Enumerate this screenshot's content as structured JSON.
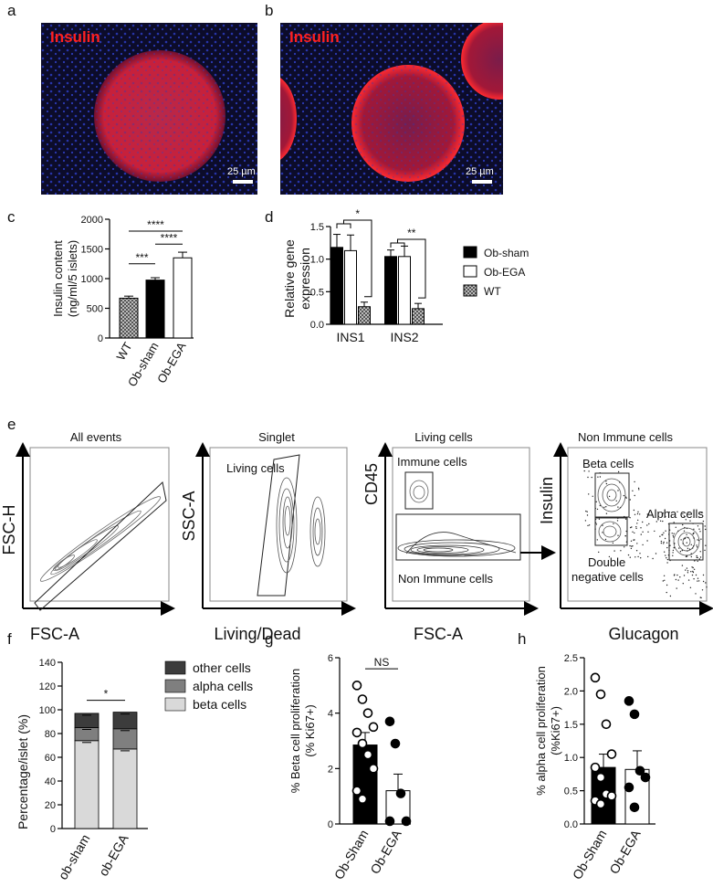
{
  "panels": {
    "a": {
      "letter": "a",
      "stain": "Insulin",
      "scale": "25 µm"
    },
    "b": {
      "letter": "b",
      "stain": "Insulin",
      "scale": "25 µm"
    },
    "c": {
      "letter": "c"
    },
    "d": {
      "letter": "d"
    },
    "e": {
      "letter": "e"
    },
    "f": {
      "letter": "f"
    },
    "g": {
      "letter": "g"
    },
    "h": {
      "letter": "h"
    }
  },
  "flow": {
    "plots": [
      {
        "title": "All events",
        "xlabel": "FSC-A",
        "ylabel": "FSC-H"
      },
      {
        "title": "Singlet",
        "xlabel": "Living/Dead",
        "ylabel": "SSC-A",
        "gate": "Living cells"
      },
      {
        "title": "Living cells",
        "xlabel": "FSC-A",
        "ylabel": "CD45",
        "gate_top": "Immune cells",
        "gate_bottom": "Non Immune cells"
      },
      {
        "title": "Non Immune cells",
        "xlabel": "Glucagon",
        "ylabel": "Insulin",
        "gate_beta": "Beta cells",
        "gate_alpha": "Alpha cells",
        "gate_dn1": "Double",
        "gate_dn2": "negative cells"
      }
    ]
  },
  "chart_data": [
    {
      "panel": "c",
      "type": "bar",
      "categories": [
        "WT",
        "Ob-sham",
        "Ob-EGA"
      ],
      "values": [
        670,
        975,
        1350
      ],
      "errors": [
        35,
        40,
        95
      ],
      "ylabel": [
        "Insulin content",
        "(ng/ml/5 islets)"
      ],
      "ylim": [
        0,
        2000
      ],
      "yticks": [
        0,
        500,
        1000,
        1500,
        2000
      ],
      "significance": [
        "***",
        "****",
        "****"
      ],
      "colors": {
        "WT": "#9a9a9a",
        "Ob-sham": "#000000",
        "Ob-EGA": "#ffffff"
      }
    },
    {
      "panel": "d",
      "type": "bar",
      "categories": [
        "INS1",
        "INS2"
      ],
      "series": [
        {
          "name": "Ob-sham",
          "values": [
            1.18,
            1.04
          ],
          "errors": [
            0.2,
            0.1
          ]
        },
        {
          "name": "Ob-EGA",
          "values": [
            1.13,
            1.04
          ],
          "errors": [
            0.24,
            0.16
          ]
        },
        {
          "name": "WT",
          "values": [
            0.27,
            0.24
          ],
          "errors": [
            0.07,
            0.08
          ]
        }
      ],
      "ylabel": [
        "Relative gene",
        "expression"
      ],
      "ylim": [
        0,
        1.5
      ],
      "yticks": [
        "0.0",
        "0.5",
        "1.0",
        "1.5"
      ],
      "significance": [
        "*",
        "**"
      ],
      "legend": "right"
    },
    {
      "panel": "f",
      "type": "bar",
      "stacked": true,
      "categories": [
        "ob-sham",
        "ob-EGA"
      ],
      "series": [
        {
          "name": "beta cells",
          "values": [
            74,
            67
          ]
        },
        {
          "name": "alpha cells",
          "values": [
            11,
            17
          ]
        },
        {
          "name": "other cells",
          "values": [
            12,
            14
          ]
        }
      ],
      "ylabel": "Percentage/islet (%)",
      "ylim": [
        0,
        140
      ],
      "yticks": [
        0,
        20,
        40,
        60,
        80,
        100,
        120,
        140
      ],
      "significance": "*",
      "legend": "right"
    },
    {
      "panel": "g",
      "type": "bar",
      "categories": [
        "Ob-Sham",
        "Ob-EGA"
      ],
      "values": [
        2.85,
        1.2
      ],
      "errors": [
        0.45,
        0.6
      ],
      "points": [
        [
          5.0,
          4.5,
          4.0,
          3.5,
          3.3,
          2.9,
          2.5,
          2.0,
          1.2,
          0.9
        ],
        [
          3.7,
          2.9,
          1.1,
          0.1,
          0.1
        ]
      ],
      "ylabel": [
        "% Beta cell proliferation",
        "(% Ki67+)"
      ],
      "ylim": [
        0,
        6
      ],
      "yticks": [
        0,
        2,
        4,
        6
      ],
      "significance": "NS"
    },
    {
      "panel": "h",
      "type": "bar",
      "categories": [
        "Ob-Sham",
        "Ob-EGA"
      ],
      "values": [
        0.85,
        0.82
      ],
      "errors": [
        0.2,
        0.28
      ],
      "points": [
        [
          2.2,
          1.95,
          1.5,
          1.05,
          0.85,
          0.7,
          0.45,
          0.42,
          0.35,
          0.3
        ],
        [
          1.85,
          1.65,
          0.8,
          0.7,
          0.55,
          0.25
        ]
      ],
      "ylabel": [
        "% alpha cell proliferation",
        "(%Ki67+)"
      ],
      "ylim": [
        0,
        2.5
      ],
      "yticks": [
        "0.0",
        "0.5",
        "1.0",
        "1.5",
        "2.0",
        "2.5"
      ]
    }
  ]
}
